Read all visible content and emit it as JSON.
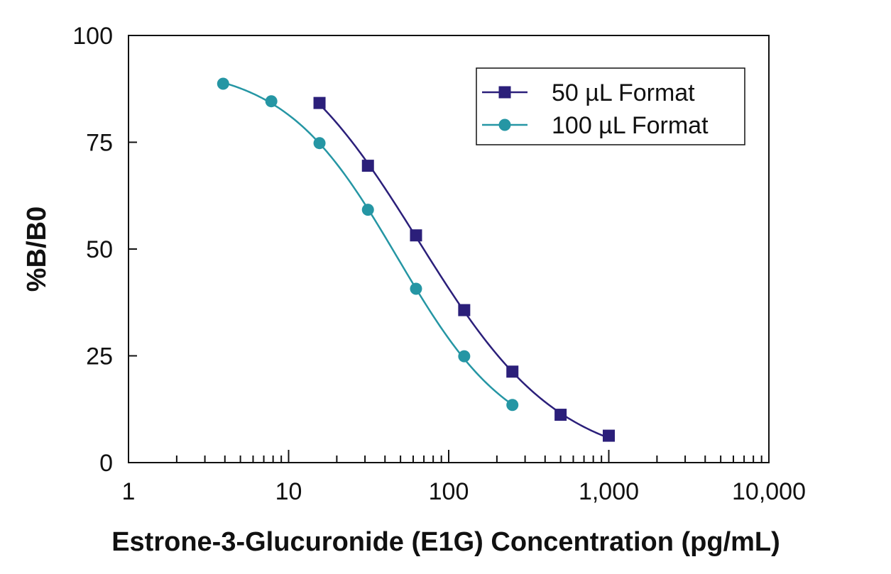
{
  "chart_data": {
    "type": "line",
    "title": "",
    "xlabel": "Estrone-3-Glucuronide (E1G) Concentration (pg/mL)",
    "ylabel": "%B/B0",
    "xscale": "log",
    "xlim": [
      1,
      10000
    ],
    "ylim": [
      0,
      100
    ],
    "xticks": [
      {
        "value": 1,
        "label": "1"
      },
      {
        "value": 10,
        "label": "10"
      },
      {
        "value": 100,
        "label": "100"
      },
      {
        "value": 1000,
        "label": "1,000"
      },
      {
        "value": 10000,
        "label": "10,000"
      }
    ],
    "yticks": [
      {
        "value": 0,
        "label": "0"
      },
      {
        "value": 25,
        "label": "25"
      },
      {
        "value": 50,
        "label": "50"
      },
      {
        "value": 75,
        "label": "75"
      },
      {
        "value": 100,
        "label": "100"
      }
    ],
    "grid": false,
    "legend_position": "top-right",
    "series": [
      {
        "name": "50 µL Format",
        "color": "#2b1f7a",
        "marker": "square",
        "x": [
          15.6,
          31.3,
          62.5,
          125,
          250,
          500,
          1000
        ],
        "y": [
          84.2,
          69.5,
          53.2,
          35.7,
          21.3,
          11.2,
          6.3
        ]
      },
      {
        "name": "100 µL Format",
        "color": "#2596a4",
        "marker": "circle",
        "x": [
          3.9,
          7.8,
          15.6,
          31.3,
          62.5,
          125,
          250
        ],
        "y": [
          88.7,
          84.6,
          74.8,
          59.2,
          40.7,
          24.9,
          13.5
        ]
      }
    ]
  }
}
